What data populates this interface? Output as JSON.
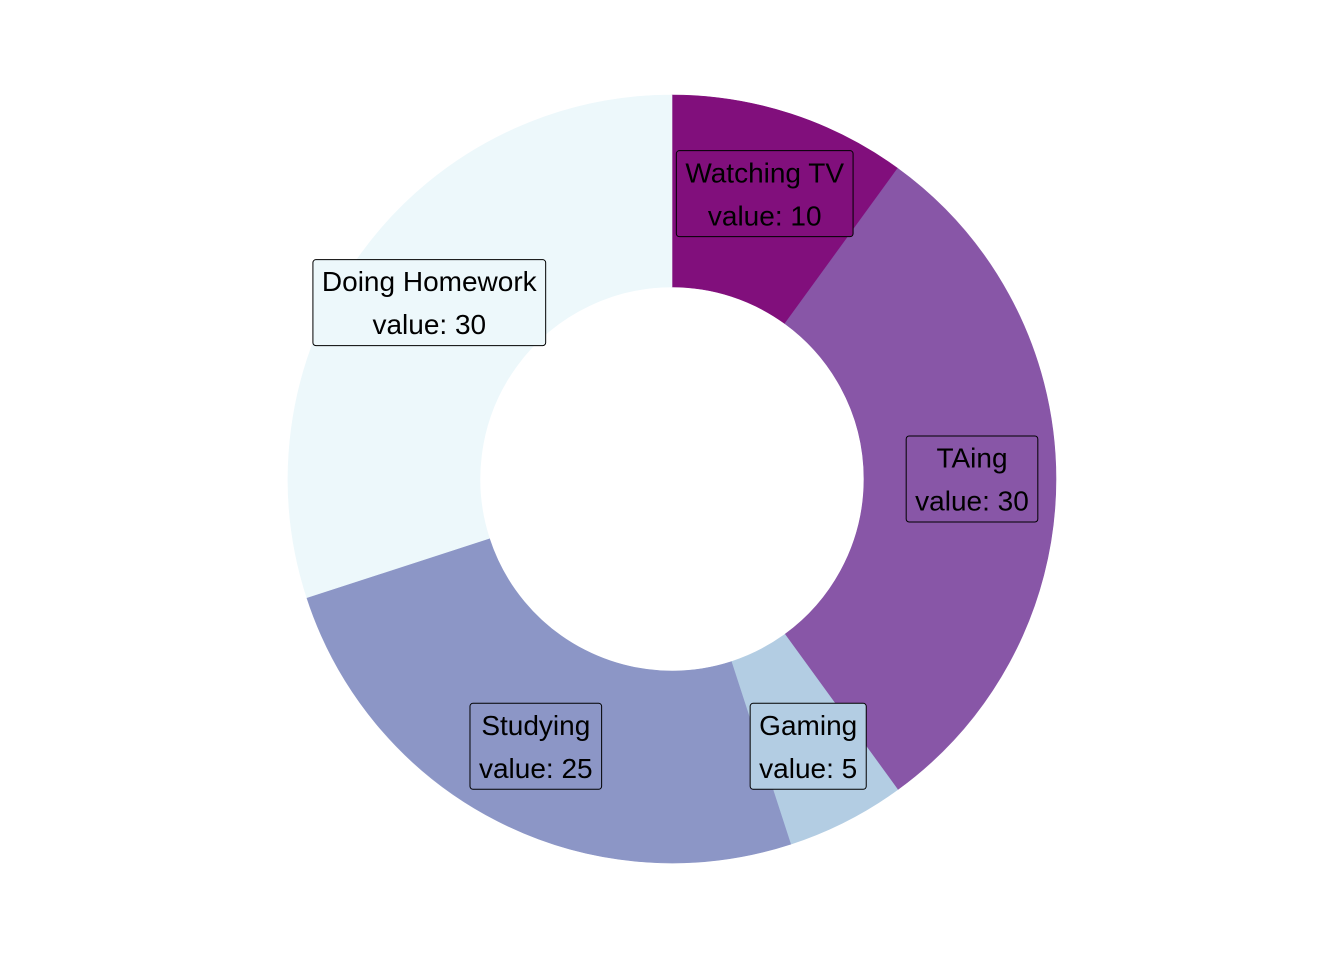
{
  "chart_data": {
    "type": "pie",
    "donut": true,
    "title": "",
    "value_prefix": "value: ",
    "slices": [
      {
        "label": "Watching TV",
        "value": 10,
        "color": "#810f7c"
      },
      {
        "label": "TAing",
        "value": 30,
        "color": "#8856a7"
      },
      {
        "label": "Gaming",
        "value": 5,
        "color": "#b3cde3"
      },
      {
        "label": "Studying",
        "value": 25,
        "color": "#8c96c6"
      },
      {
        "label": "Doing Homework",
        "value": 30,
        "color": "#edf8fb"
      }
    ],
    "legend": "none"
  }
}
